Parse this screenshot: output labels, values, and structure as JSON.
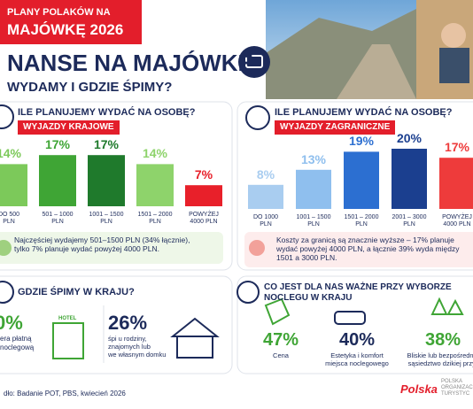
{
  "badge": {
    "line1": "PLANY POLAKÓW NA",
    "line2": "MAJÓWKĘ 2026"
  },
  "title": "NANSE NA MAJÓWKĘ",
  "subtitle": "WYDAMY I GDZIE ŚPIMY?",
  "chart_data": [
    {
      "type": "bar",
      "title": "ILE PLANUJEMY WYDAĆ NA OSOBĘ?",
      "subtitle": "WYJAZDY KRAJOWE",
      "categories": [
        "DO 500\nPLN",
        "501 – 1000\nPLN",
        "1001 – 1500\nPLN",
        "1501 – 2000\nPLN",
        "POWYŻEJ\n4000 PLN"
      ],
      "values": [
        14,
        17,
        17,
        14,
        7
      ],
      "value_labels": [
        "14%",
        "17%",
        "17%",
        "14%",
        "7%"
      ],
      "colors": [
        "#7cc95a",
        "#3fa535",
        "#1f7a2c",
        "#8ed36b",
        "#e8202a"
      ],
      "note": "Najczęściej wydajemy 501–1500 PLN (34% łącznie),\ntylko 7% planuje wydać powyżej 4000 PLN."
    },
    {
      "type": "bar",
      "title": "ILE PLANUJEMY WYDAĆ NA OSOBĘ?",
      "subtitle": "WYJAZDY ZAGRANICZNE",
      "categories": [
        "DO 1000\nPLN",
        "1001 – 1500\nPLN",
        "1501 – 2000\nPLN",
        "2001 – 3000\nPLN",
        "POWYŻEJ\n4000 PLN"
      ],
      "values": [
        8,
        13,
        19,
        20,
        17
      ],
      "value_labels": [
        "8%",
        "13%",
        "19%",
        "20%",
        "17%"
      ],
      "colors": [
        "#a9cdf0",
        "#8fbfee",
        "#2c6fd1",
        "#1b3f8f",
        "#ee3b3b"
      ],
      "note": "Koszty za granicą są znacznie wyższe – 17% planuje\nwydać powyżej 4000 PLN, a łącznie 39% wyda między\n1501 a 3000 PLN."
    }
  ],
  "sleep": {
    "title": "GDZIE ŚPIMY W KRAJU?",
    "hotel_sign": "HOTEL",
    "items": [
      {
        "value_label": "0%",
        "text": "era płatną\nnoclegową"
      },
      {
        "value_label": "26%",
        "text": "śpi u rodziny,\nznajomych lub\nwe własnym domku"
      }
    ]
  },
  "criteria": {
    "title": "CO JEST DLA NAS WAŻNE PRZY WYBORZE NOCLEGU W KRAJU",
    "items": [
      {
        "value_label": "47%",
        "text": "Cena"
      },
      {
        "value_label": "40%",
        "text": "Estetyka i komfort\nmiejsca noclegowego"
      },
      {
        "value_label": "38%",
        "text": "Bliskie lub bezpośrednie\nsąsiedztwo dzikiej przyr"
      }
    ]
  },
  "footer": "dło: Badanie POT, PBS, kwiecień 2026",
  "logo": {
    "name": "Polska",
    "org": "POLSKA\nORGANIZAC\nTURYSTYC"
  }
}
